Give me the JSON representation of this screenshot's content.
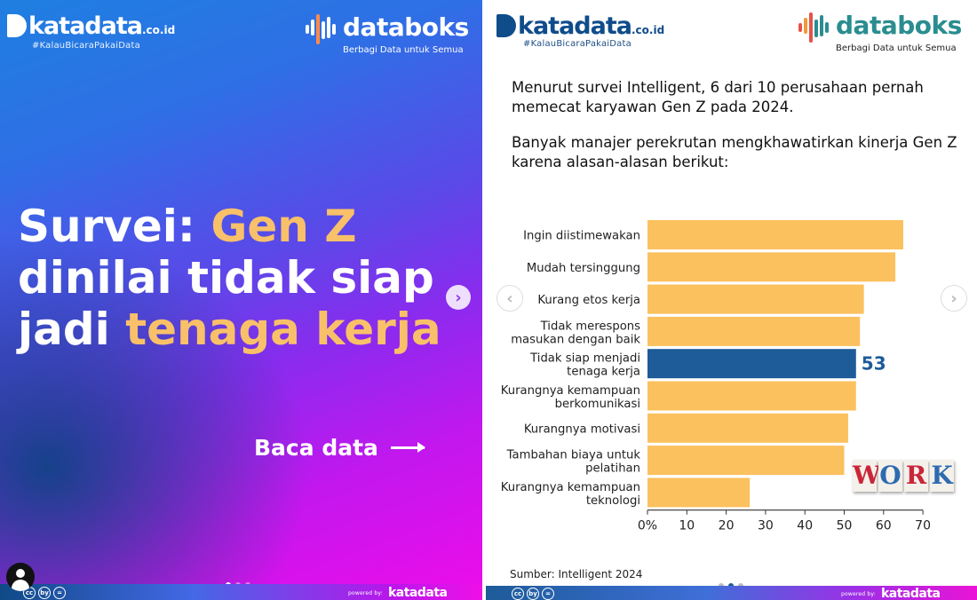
{
  "slide1": {
    "brand": {
      "name": "katadata",
      "domain": ".co.id",
      "tagline": "#KalauBicaraPakaiData"
    },
    "partner": {
      "name": "databoks",
      "tagline": "Berbagi Data untuk Semua"
    },
    "headline": {
      "p1": "Survei: ",
      "p2": "Gen Z",
      "p3": "dinilai tidak siap",
      "p4": "jadi ",
      "p5": "tenaga kerja"
    },
    "cta": "Baca data",
    "next_icon": "chevron-right-icon",
    "license_icons": [
      "cc",
      "by",
      "="
    ],
    "powered": {
      "label": "powered by:",
      "brand": "katadata"
    }
  },
  "slide2": {
    "brand": {
      "name": "katadata",
      "domain": ".co.id",
      "tagline": "#KalauBicaraPakaiData"
    },
    "partner": {
      "name": "databoks",
      "tagline": "Berbagi Data untuk Semua"
    },
    "intro1": "Menurut survei Intelligent, 6 dari 10 perusahaan pernah memecat karyawan Gen Z pada 2024.",
    "intro2": "Banyak manajer perekrutan mengkhawatirkan kinerja Gen Z karena alasan-alasan berikut:",
    "source": "Sumber: Intelligent 2024",
    "prev_icon": "chevron-left-icon",
    "next_icon": "chevron-right-icon",
    "work_letters": [
      "W",
      "O",
      "R",
      "K"
    ],
    "license_icons": [
      "cc",
      "by",
      "="
    ],
    "powered": {
      "label": "powered by:",
      "brand": "katadata"
    }
  },
  "colors": {
    "bar": "#fbc15e",
    "highlight": "#1d5b99",
    "highlight_label": "#1d5b99",
    "accent_text": "#f9c06a",
    "katadata_blue": "#0f4c8a",
    "databoks_teal": "#2a8d8f"
  },
  "chart_data": {
    "type": "bar",
    "orientation": "horizontal",
    "categories": [
      [
        "Ingin diistimewakan"
      ],
      [
        "Mudah tersinggung"
      ],
      [
        "Kurang etos kerja"
      ],
      [
        "Tidak merespons",
        "masukan dengan baik"
      ],
      [
        "Tidak siap menjadi",
        "tenaga kerja"
      ],
      [
        "Kurangnya kemampuan",
        "berkomunikasi"
      ],
      [
        "Kurangnya motivasi"
      ],
      [
        "Tambahan biaya untuk",
        "pelatihan"
      ],
      [
        "Kurangnya kemampuan",
        "teknologi"
      ]
    ],
    "values": [
      65,
      63,
      55,
      54,
      53,
      53,
      51,
      50,
      26
    ],
    "highlight_index": 4,
    "highlight_label": "53",
    "xlim": [
      0,
      70
    ],
    "xticks": [
      0,
      10,
      20,
      30,
      40,
      50,
      60,
      70
    ],
    "xtick_labels": [
      "0%",
      "10",
      "20",
      "30",
      "40",
      "50",
      "60",
      "70"
    ],
    "grid": false
  }
}
